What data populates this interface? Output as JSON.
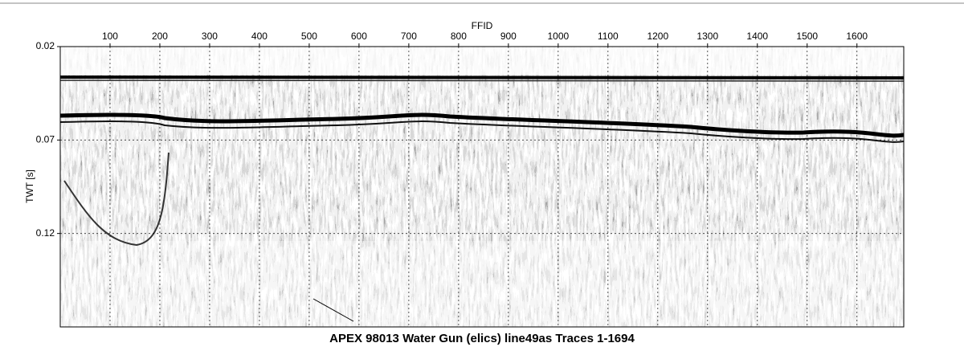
{
  "chart_data": {
    "type": "seismic",
    "title": "APEX 98013 Water Gun (elics) line49as Traces 1-1694",
    "x_label": "FFID",
    "y_label": "TWT [s]",
    "xlim": [
      0,
      1694
    ],
    "xticks": [
      100,
      200,
      300,
      400,
      500,
      600,
      700,
      800,
      900,
      1000,
      1100,
      1200,
      1300,
      1400,
      1500,
      1600
    ],
    "ylim": [
      0.17,
      0.02
    ],
    "yticks": [
      0.02,
      0.07,
      0.12
    ],
    "grid": true
  }
}
